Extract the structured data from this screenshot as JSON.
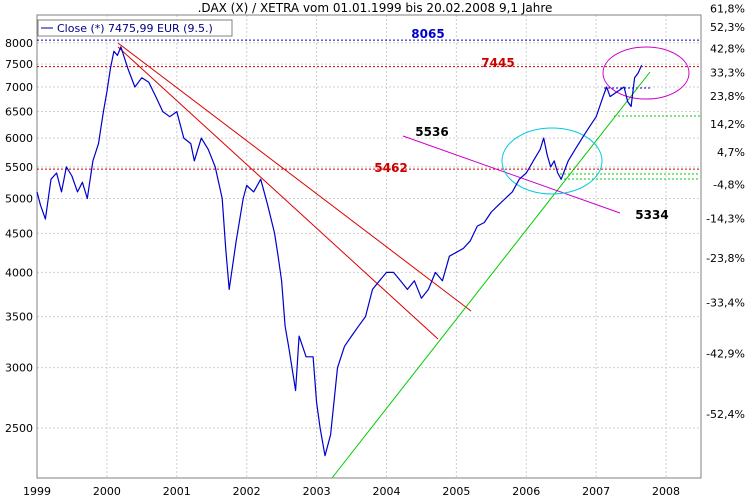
{
  "chart_data": {
    "type": "line",
    "title": ".DAX (X) / XETRA vom 01.01.1999 bis 20.02.2008 9,1 Jahre",
    "legend": {
      "label": "Close (*) 7475,99 EUR (9.5.)",
      "placement": "top-left"
    },
    "y_scale": "log",
    "ylim": [
      2150,
      8700
    ],
    "xlim": [
      1999.0,
      2008.5
    ],
    "grid": true,
    "y_ticks": [
      2500,
      3000,
      3500,
      4000,
      4500,
      5000,
      5500,
      6000,
      6500,
      7000,
      7500,
      8000
    ],
    "y_tick_labels": [
      "2500",
      "3000",
      "3500",
      "4000",
      "4500",
      "5000",
      "5500",
      "6000",
      "6500",
      "7000",
      "7500",
      "8000"
    ],
    "x_ticks": [
      1999,
      2000,
      2001,
      2002,
      2003,
      2004,
      2005,
      2006,
      2007,
      2008
    ],
    "x_tick_labels": [
      "1999",
      "2000",
      "2001",
      "2002",
      "2003",
      "2004",
      "2005",
      "2006",
      "2007",
      "2008"
    ],
    "right_axis_labels": [
      "61,8%",
      "52,3%",
      "42,8%",
      "33,3%",
      "23,8%",
      "14,2%",
      "4,7%",
      "-4,8%",
      "-14,3%",
      "-23,8%",
      "-33,4%",
      "-42,9%",
      "-52,4%"
    ],
    "right_axis_values": [
      8876,
      8385,
      7863,
      7312,
      6809,
      6263,
      5749,
      5219,
      4703,
      4180,
      3654,
      3130,
      2610
    ],
    "series": [
      {
        "color": "#0000CC",
        "x": [
          1999.0,
          1999.05,
          1999.12,
          1999.2,
          1999.28,
          1999.35,
          1999.42,
          1999.5,
          1999.58,
          1999.65,
          1999.72,
          1999.8,
          1999.88,
          1999.95,
          2000.0,
          2000.05,
          2000.1,
          2000.15,
          2000.2,
          2000.3,
          2000.4,
          2000.5,
          2000.6,
          2000.7,
          2000.8,
          2000.9,
          2001.0,
          2001.1,
          2001.2,
          2001.25,
          2001.35,
          2001.45,
          2001.55,
          2001.65,
          2001.7,
          2001.75,
          2001.85,
          2001.95,
          2002.0,
          2002.1,
          2002.2,
          2002.3,
          2002.4,
          2002.45,
          2002.5,
          2002.55,
          2002.6,
          2002.7,
          2002.75,
          2002.85,
          2002.95,
          2003.0,
          2003.05,
          2003.12,
          2003.2,
          2003.3,
          2003.4,
          2003.5,
          2003.6,
          2003.7,
          2003.8,
          2003.9,
          2004.0,
          2004.1,
          2004.2,
          2004.3,
          2004.4,
          2004.5,
          2004.6,
          2004.7,
          2004.8,
          2004.9,
          2005.0,
          2005.1,
          2005.2,
          2005.3,
          2005.4,
          2005.5,
          2005.6,
          2005.7,
          2005.8,
          2005.9,
          2006.0,
          2006.1,
          2006.2,
          2006.25,
          2006.3,
          2006.35,
          2006.4,
          2006.45,
          2006.5,
          2006.6,
          2006.7,
          2006.8,
          2006.9,
          2007.0,
          2007.1,
          2007.15,
          2007.2,
          2007.3,
          2007.4,
          2007.45,
          2007.5,
          2007.55,
          2007.6,
          2007.65
        ],
        "values": [
          5100,
          4900,
          4700,
          5300,
          5400,
          5100,
          5500,
          5350,
          5100,
          5250,
          5000,
          5600,
          5900,
          6500,
          6900,
          7400,
          7800,
          7700,
          7900,
          7400,
          7000,
          7200,
          7100,
          6800,
          6500,
          6400,
          6500,
          6000,
          5900,
          5600,
          6000,
          5800,
          5500,
          5000,
          4300,
          3800,
          4400,
          5000,
          5200,
          5100,
          5300,
          4900,
          4500,
          4200,
          3900,
          3400,
          3200,
          2800,
          3300,
          3100,
          3100,
          2700,
          2500,
          2300,
          2450,
          3000,
          3200,
          3300,
          3400,
          3500,
          3800,
          3900,
          4000,
          4000,
          3900,
          3800,
          3900,
          3700,
          3800,
          4000,
          3900,
          4200,
          4250,
          4300,
          4400,
          4600,
          4650,
          4800,
          4900,
          5000,
          5100,
          5300,
          5400,
          5600,
          5800,
          6000,
          5700,
          5500,
          5600,
          5400,
          5300,
          5600,
          5800,
          6000,
          6200,
          6400,
          6800,
          7000,
          6800,
          6900,
          7000,
          6700,
          6600,
          7200,
          7300,
          7475.99
        ]
      }
    ],
    "annotations": [
      {
        "label": "8065",
        "value": 8065,
        "color": "#0000CC"
      },
      {
        "label": "7445",
        "value": 7445,
        "color": "#CC0000"
      },
      {
        "label": "5536",
        "color": "#000000"
      },
      {
        "label": "5462",
        "value": 5462,
        "color": "#CC0000"
      },
      {
        "label": "5334",
        "color": "#000000"
      }
    ]
  }
}
